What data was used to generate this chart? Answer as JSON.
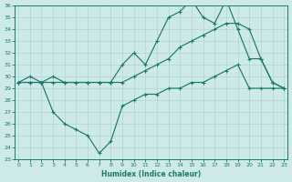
{
  "xlabel": "Humidex (Indice chaleur)",
  "x": [
    0,
    1,
    2,
    3,
    4,
    5,
    6,
    7,
    8,
    9,
    10,
    11,
    12,
    13,
    14,
    15,
    16,
    17,
    18,
    19,
    20,
    21,
    22,
    23
  ],
  "line_top": [
    29.5,
    30.0,
    29.5,
    30.0,
    29.5,
    29.5,
    29.5,
    29.5,
    29.5,
    31.0,
    32.0,
    31.0,
    33.0,
    35.0,
    35.5,
    36.5,
    35.0,
    34.5,
    36.5,
    34.0,
    31.5,
    31.5,
    29.5,
    29.0
  ],
  "line_mid": [
    29.5,
    29.5,
    29.5,
    29.5,
    29.5,
    29.5,
    29.5,
    29.5,
    29.5,
    29.5,
    30.0,
    30.5,
    31.0,
    31.5,
    32.5,
    33.0,
    33.5,
    34.0,
    34.5,
    34.5,
    34.0,
    31.5,
    29.5,
    29.0
  ],
  "line_bot": [
    29.5,
    29.5,
    29.5,
    27.0,
    26.0,
    25.5,
    25.0,
    23.5,
    24.5,
    27.5,
    28.0,
    28.5,
    28.5,
    29.0,
    29.0,
    29.5,
    29.5,
    30.0,
    30.5,
    31.0,
    29.0,
    29.0,
    29.0,
    29.0
  ],
  "line_color": "#1a7a6e",
  "bg_color": "#ceeae8",
  "grid_color": "#afd4d2",
  "ylim_min": 23,
  "ylim_max": 36,
  "yticks": [
    23,
    24,
    25,
    26,
    27,
    28,
    29,
    30,
    31,
    32,
    33,
    34,
    35,
    36
  ],
  "xticks": [
    0,
    1,
    2,
    3,
    4,
    5,
    6,
    7,
    8,
    9,
    10,
    11,
    12,
    13,
    14,
    15,
    16,
    17,
    18,
    19,
    20,
    21,
    22,
    23
  ]
}
